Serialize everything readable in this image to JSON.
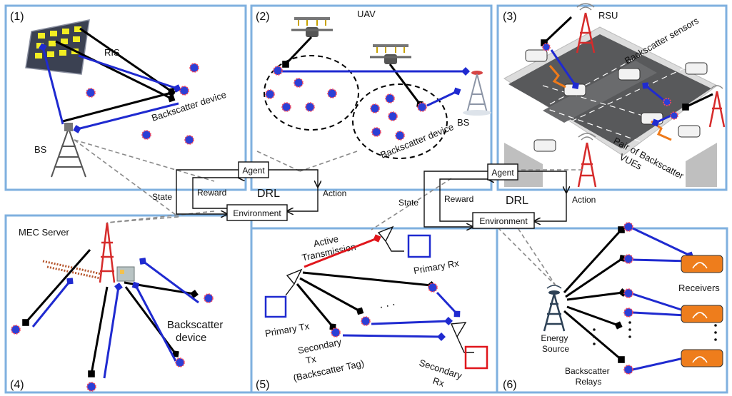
{
  "panels": [
    {
      "label": "(1)"
    },
    {
      "label": "(2)"
    },
    {
      "label": "(3)"
    },
    {
      "label": "(4)"
    },
    {
      "label": "(5)"
    },
    {
      "label": "(6)"
    }
  ],
  "p1": {
    "ris": "RIS",
    "device": "Backscatter device",
    "bs": "BS"
  },
  "p2": {
    "uav": "UAV",
    "bs": "BS",
    "device": "Backscatter device"
  },
  "p3": {
    "rsu": "RSU",
    "sensors": "Backscatter sensors",
    "vues_line1": "Pair of Backscatter",
    "vues_line2": "VUEs"
  },
  "p4": {
    "mec": "MEC Server",
    "device_line1": "Backscatter",
    "device_line2": "device"
  },
  "p5": {
    "active_line1": "Active",
    "active_line2": "Transmission",
    "primary_rx": "Primary Rx",
    "primary_tx": "Primary Tx",
    "secondary_tx_line1": "Secondary",
    "secondary_tx_line2": "Tx",
    "secondary_tx_line3": "(Backscatter Tag)",
    "secondary_rx_line1": "Secondary",
    "secondary_rx_line2": "Rx",
    "dots": ". . ."
  },
  "p6": {
    "receivers": "Receivers",
    "energy_line1": "Energy",
    "energy_line2": "Source",
    "relays_line1": "Backscatter",
    "relays_line2": "Relays"
  },
  "drl_left": {
    "agent": "Agent",
    "environment": "Environment",
    "state": "State",
    "reward": "Reward",
    "action": "Action",
    "drl": "DRL"
  },
  "drl_right": {
    "agent": "Agent",
    "environment": "Environment",
    "state": "State",
    "reward": "Reward",
    "action": "Action",
    "drl": "DRL"
  },
  "colors": {
    "panel_border": "#7fb0df",
    "node_fill": "#2b3fd6",
    "node_border": "#ff4a5a",
    "blue_link": "#1f2ad0",
    "red_link": "#e0161c"
  }
}
